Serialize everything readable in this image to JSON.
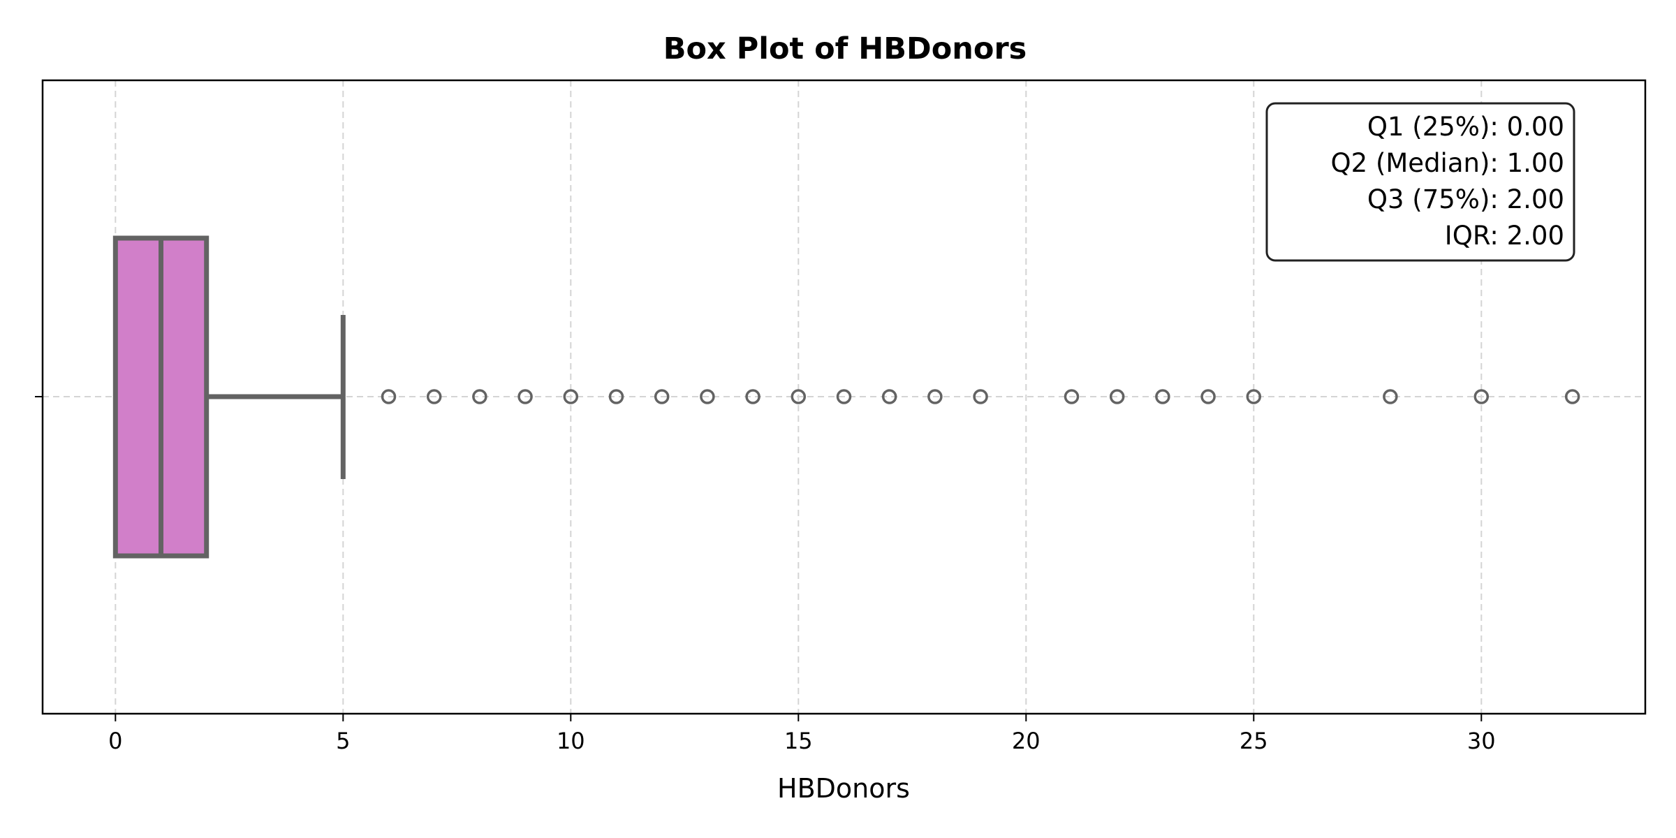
{
  "chart_data": {
    "type": "box",
    "title": "Box Plot of HBDonors",
    "xlabel": "HBDonors",
    "ylabel": "",
    "orientation": "horizontal",
    "xlim": [
      -1.6,
      33.6
    ],
    "x_ticks": [
      0,
      5,
      10,
      15,
      20,
      25,
      30
    ],
    "grid": true,
    "box": {
      "q1": 0,
      "median": 1,
      "q3": 2,
      "whisker_low": 0,
      "whisker_high": 5,
      "fill_color": "#d17fc9",
      "edge_color": "#636363"
    },
    "outliers": [
      6,
      7,
      8,
      9,
      10,
      11,
      12,
      13,
      14,
      15,
      16,
      17,
      18,
      19,
      21,
      22,
      23,
      24,
      25,
      28,
      30,
      32
    ],
    "stats_box": {
      "lines": [
        "Q1 (25%): 0.00",
        "Q2 (Median): 1.00",
        "Q3 (75%): 2.00",
        "IQR: 2.00"
      ],
      "placement": "top-right"
    }
  }
}
